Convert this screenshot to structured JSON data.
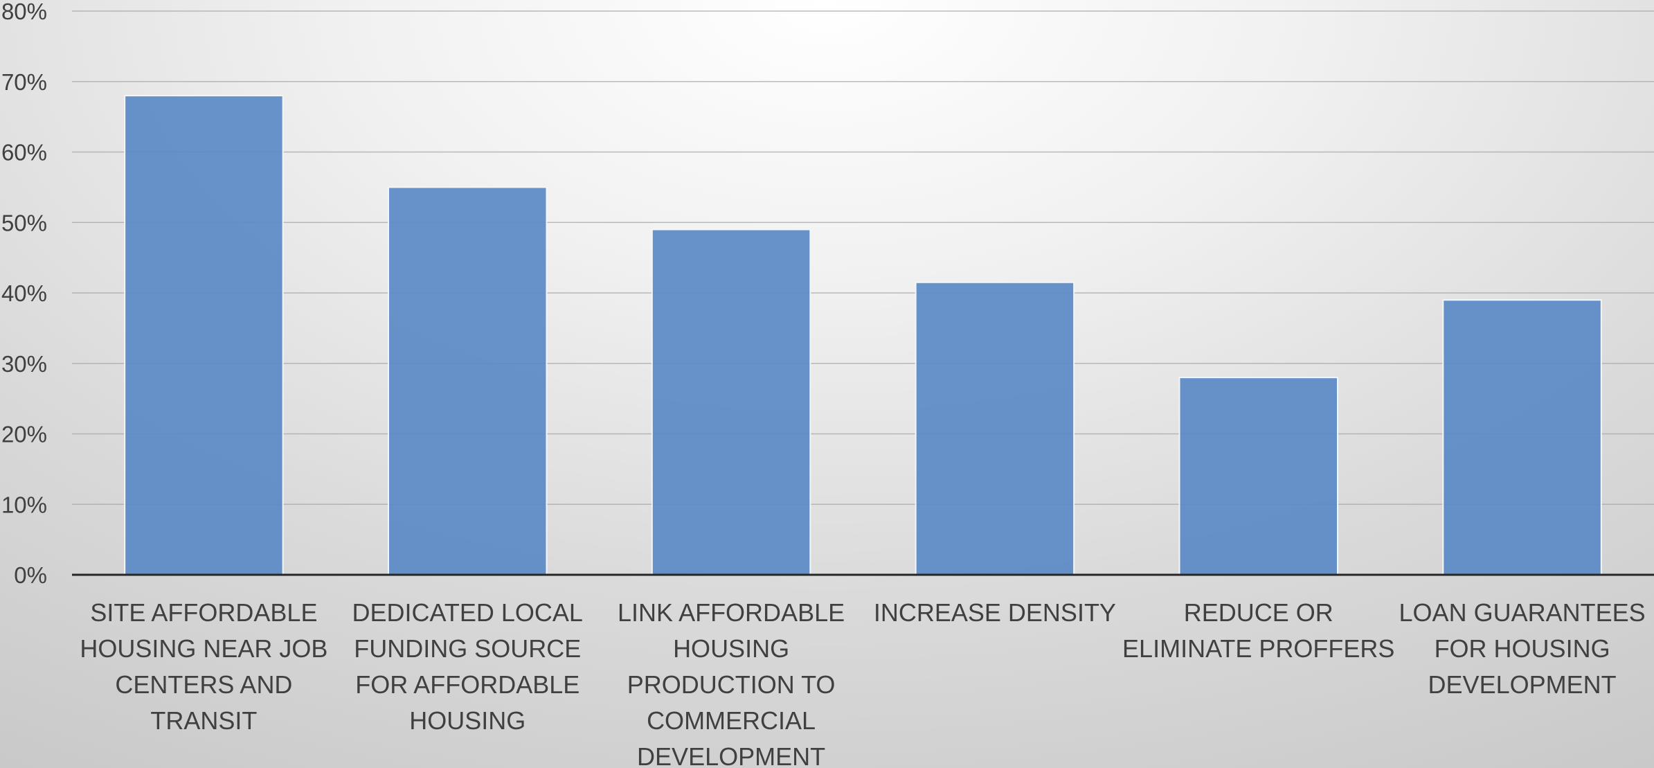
{
  "chart_data": {
    "type": "bar",
    "title": "",
    "xlabel": "",
    "ylabel": "",
    "ylim": [
      0,
      0.8
    ],
    "grid": true,
    "legend": "none",
    "y_ticks": [
      "0%",
      "10%",
      "20%",
      "30%",
      "40%",
      "50%",
      "60%",
      "70%",
      "80%"
    ],
    "categories": [
      [
        "SITE AFFORDABLE",
        "HOUSING NEAR JOB",
        "CENTERS AND",
        "TRANSIT"
      ],
      [
        "DEDICATED LOCAL",
        "FUNDING SOURCE",
        "FOR AFFORDABLE",
        "HOUSING"
      ],
      [
        "LINK AFFORDABLE",
        "HOUSING",
        "PRODUCTION TO",
        "COMMERCIAL",
        "DEVELOPMENT"
      ],
      [
        "INCREASE DENSITY"
      ],
      [
        "REDUCE OR",
        "ELIMINATE PROFFERS"
      ],
      [
        "LOAN GUARANTEES",
        "FOR HOUSING",
        "DEVELOPMENT"
      ]
    ],
    "values": [
      0.68,
      0.55,
      0.49,
      0.415,
      0.28,
      0.39
    ],
    "colors": {
      "bar": "#5b8ac6",
      "bar_edge": "#f2f6fb",
      "grid": "#a6a6a6",
      "axis": "#262626",
      "text": "#404040"
    }
  }
}
